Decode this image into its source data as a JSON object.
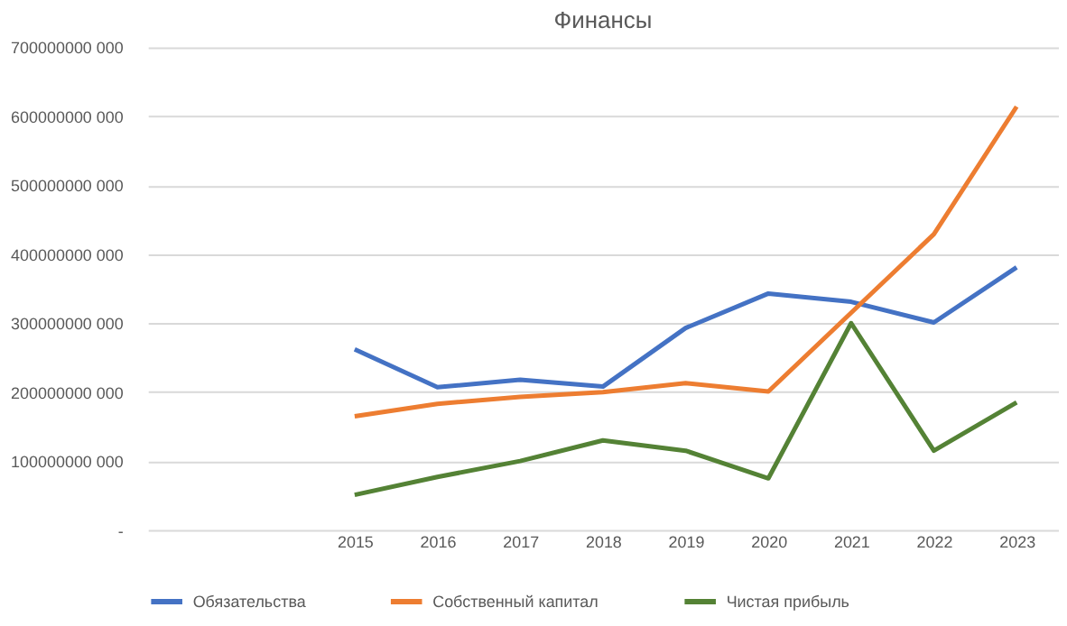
{
  "chart_data": {
    "type": "line",
    "title": "Финансы",
    "categories": [
      null,
      null,
      "2015",
      "2016",
      "2017",
      "2018",
      "2019",
      "2020",
      "2021",
      "2022",
      "2023"
    ],
    "series": [
      {
        "name": "Обязательства",
        "color": "#4472c4",
        "values": [
          null,
          null,
          262000000000,
          207000000000,
          218000000000,
          208000000000,
          293000000000,
          343000000000,
          331000000000,
          301000000000,
          381000000000
        ]
      },
      {
        "name": "Собственный капитал",
        "color": "#ed7d31",
        "values": [
          null,
          null,
          165000000000,
          183000000000,
          193000000000,
          200000000000,
          213000000000,
          201000000000,
          315000000000,
          429000000000,
          614000000000
        ]
      },
      {
        "name": "Чистая прибыль",
        "color": "#548235",
        "values": [
          null,
          null,
          51000000000,
          77000000000,
          100000000000,
          130000000000,
          115000000000,
          75000000000,
          300000000000,
          115000000000,
          185000000000
        ]
      }
    ],
    "ylim": [
      0,
      700000000000
    ],
    "yticks": [
      {
        "value": 0,
        "label": "-"
      },
      {
        "value": 100000000000,
        "label": "100000000 000"
      },
      {
        "value": 200000000000,
        "label": "200000000 000"
      },
      {
        "value": 300000000000,
        "label": "300000000 000"
      },
      {
        "value": 400000000000,
        "label": "400000000 000"
      },
      {
        "value": 500000000000,
        "label": "500000000 000"
      },
      {
        "value": 600000000000,
        "label": "600000000 000"
      },
      {
        "value": 700000000000,
        "label": "700000000 000"
      }
    ],
    "grid": "y",
    "legend": "bottom",
    "marker": "none",
    "line_style": "solid"
  }
}
